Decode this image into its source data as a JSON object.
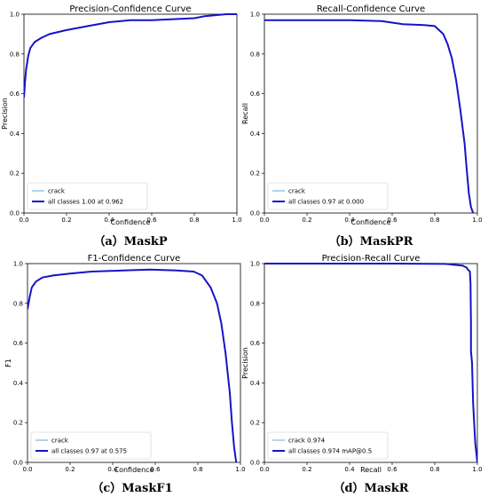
{
  "chart_data": [
    {
      "id": "a",
      "type": "line",
      "title": "Precision-Confidence Curve",
      "xlabel": "Confidence",
      "ylabel": "Precision",
      "caption": "（a）MaskP",
      "xlim": [
        0,
        1
      ],
      "ylim": [
        0,
        1
      ],
      "xticks": [
        "0.0",
        "0.2",
        "0.4",
        "0.6",
        "0.8",
        "1.0"
      ],
      "yticks": [
        "0.0",
        "0.2",
        "0.4",
        "0.6",
        "0.8",
        "1.0"
      ],
      "grid": false,
      "legend_position": "lower-left",
      "series": [
        {
          "name": "crack",
          "color": "#5aa9e6",
          "width": 1,
          "x": [
            0,
            0.005,
            0.01,
            0.02,
            0.03,
            0.05,
            0.08,
            0.12,
            0.2,
            0.3,
            0.4,
            0.5,
            0.6,
            0.7,
            0.8,
            0.85,
            0.9,
            0.95,
            1.0
          ],
          "y": [
            0.58,
            0.66,
            0.72,
            0.79,
            0.83,
            0.86,
            0.88,
            0.9,
            0.92,
            0.94,
            0.96,
            0.97,
            0.97,
            0.975,
            0.98,
            0.99,
            0.995,
            1.0,
            1.0
          ]
        },
        {
          "name": "all classes 1.00 at 0.962",
          "color": "#1414c8",
          "width": 2,
          "x": [
            0,
            0.005,
            0.01,
            0.02,
            0.03,
            0.05,
            0.08,
            0.12,
            0.2,
            0.3,
            0.4,
            0.5,
            0.6,
            0.7,
            0.8,
            0.85,
            0.9,
            0.95,
            1.0
          ],
          "y": [
            0.58,
            0.66,
            0.72,
            0.79,
            0.83,
            0.86,
            0.88,
            0.9,
            0.92,
            0.94,
            0.96,
            0.97,
            0.97,
            0.975,
            0.98,
            0.99,
            0.995,
            1.0,
            1.0
          ]
        }
      ]
    },
    {
      "id": "b",
      "type": "line",
      "title": "Recall-Confidence Curve",
      "xlabel": "Confidence",
      "ylabel": "Recall",
      "caption": "（b）MaskPR",
      "xlim": [
        0,
        1
      ],
      "ylim": [
        0,
        1
      ],
      "xticks": [
        "0.0",
        "0.2",
        "0.4",
        "0.6",
        "0.8",
        "1.0"
      ],
      "yticks": [
        "0.0",
        "0.2",
        "0.4",
        "0.6",
        "0.8",
        "1.0"
      ],
      "grid": false,
      "legend_position": "lower-left",
      "series": [
        {
          "name": "crack",
          "color": "#5aa9e6",
          "width": 1,
          "x": [
            0,
            0.2,
            0.4,
            0.55,
            0.65,
            0.75,
            0.8,
            0.84,
            0.86,
            0.88,
            0.9,
            0.92,
            0.94,
            0.95,
            0.96,
            0.97,
            0.98
          ],
          "y": [
            0.97,
            0.97,
            0.97,
            0.965,
            0.95,
            0.945,
            0.94,
            0.9,
            0.85,
            0.78,
            0.67,
            0.52,
            0.35,
            0.22,
            0.1,
            0.03,
            0.0
          ]
        },
        {
          "name": "all classes 0.97 at 0.000",
          "color": "#1414c8",
          "width": 2,
          "x": [
            0,
            0.2,
            0.4,
            0.55,
            0.65,
            0.75,
            0.8,
            0.84,
            0.86,
            0.88,
            0.9,
            0.92,
            0.94,
            0.95,
            0.96,
            0.97,
            0.98
          ],
          "y": [
            0.97,
            0.97,
            0.97,
            0.965,
            0.95,
            0.945,
            0.94,
            0.9,
            0.85,
            0.78,
            0.67,
            0.52,
            0.35,
            0.22,
            0.1,
            0.03,
            0.0
          ]
        }
      ]
    },
    {
      "id": "c",
      "type": "line",
      "title": "F1-Confidence Curve",
      "xlabel": "Confidence",
      "ylabel": "F1",
      "caption": "（c）MaskF1",
      "xlim": [
        0,
        1
      ],
      "ylim": [
        0,
        1
      ],
      "xticks": [
        "0.0",
        "0.2",
        "0.4",
        "0.6",
        "0.8",
        "1.0"
      ],
      "yticks": [
        "0.0",
        "0.2",
        "0.4",
        "0.6",
        "0.8",
        "1.0"
      ],
      "grid": false,
      "legend_position": "lower-left",
      "series": [
        {
          "name": "crack",
          "color": "#5aa9e6",
          "width": 1,
          "x": [
            0,
            0.01,
            0.02,
            0.04,
            0.07,
            0.12,
            0.2,
            0.3,
            0.45,
            0.575,
            0.7,
            0.78,
            0.82,
            0.86,
            0.89,
            0.91,
            0.93,
            0.95,
            0.96,
            0.97,
            0.98
          ],
          "y": [
            0.77,
            0.83,
            0.88,
            0.91,
            0.93,
            0.94,
            0.95,
            0.96,
            0.965,
            0.97,
            0.965,
            0.96,
            0.94,
            0.88,
            0.8,
            0.7,
            0.55,
            0.35,
            0.2,
            0.08,
            0.0
          ]
        },
        {
          "name": "all classes 0.97 at 0.575",
          "color": "#1414c8",
          "width": 2,
          "x": [
            0,
            0.01,
            0.02,
            0.04,
            0.07,
            0.12,
            0.2,
            0.3,
            0.45,
            0.575,
            0.7,
            0.78,
            0.82,
            0.86,
            0.89,
            0.91,
            0.93,
            0.95,
            0.96,
            0.97,
            0.98
          ],
          "y": [
            0.77,
            0.83,
            0.88,
            0.91,
            0.93,
            0.94,
            0.95,
            0.96,
            0.965,
            0.97,
            0.965,
            0.96,
            0.94,
            0.88,
            0.8,
            0.7,
            0.55,
            0.35,
            0.2,
            0.08,
            0.0
          ]
        }
      ]
    },
    {
      "id": "d",
      "type": "line",
      "title": "Precision-Recall Curve",
      "xlabel": "Recall",
      "ylabel": "Precision",
      "caption": "（d）MaskR",
      "xlim": [
        0,
        1
      ],
      "ylim": [
        0,
        1
      ],
      "xticks": [
        "0.0",
        "0.2",
        "0.4",
        "0.6",
        "0.8",
        "1.0"
      ],
      "yticks": [
        "0.0",
        "0.2",
        "0.4",
        "0.6",
        "0.8",
        "1.0"
      ],
      "grid": false,
      "legend_position": "lower-left",
      "series": [
        {
          "name": "crack 0.974",
          "color": "#5aa9e6",
          "width": 1,
          "x": [
            0,
            0.3,
            0.6,
            0.85,
            0.93,
            0.94,
            0.95,
            0.955,
            0.96,
            0.965,
            0.968,
            0.97,
            0.97,
            0.975,
            0.98,
            0.99,
            1.0
          ],
          "y": [
            1.0,
            1.0,
            1.0,
            0.998,
            0.99,
            0.985,
            0.98,
            0.97,
            0.965,
            0.96,
            0.9,
            0.7,
            0.56,
            0.5,
            0.3,
            0.1,
            0.0
          ]
        },
        {
          "name": "all classes 0.974 mAP@0.5",
          "color": "#1414c8",
          "width": 2,
          "x": [
            0,
            0.3,
            0.6,
            0.85,
            0.93,
            0.94,
            0.95,
            0.955,
            0.96,
            0.965,
            0.968,
            0.97,
            0.97,
            0.975,
            0.98,
            0.99,
            1.0
          ],
          "y": [
            1.0,
            1.0,
            1.0,
            0.998,
            0.99,
            0.985,
            0.98,
            0.97,
            0.965,
            0.96,
            0.9,
            0.7,
            0.56,
            0.5,
            0.3,
            0.1,
            0.0
          ]
        }
      ]
    }
  ]
}
